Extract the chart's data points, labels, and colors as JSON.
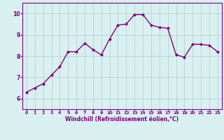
{
  "x": [
    0,
    1,
    2,
    3,
    4,
    5,
    6,
    7,
    8,
    9,
    10,
    11,
    12,
    13,
    14,
    15,
    16,
    17,
    18,
    19,
    20,
    21,
    22,
    23
  ],
  "y": [
    6.3,
    6.5,
    6.7,
    7.1,
    7.5,
    8.2,
    8.2,
    8.6,
    8.3,
    8.05,
    8.8,
    9.45,
    9.5,
    9.95,
    9.95,
    9.45,
    9.35,
    9.3,
    8.05,
    7.95,
    8.55,
    8.55,
    8.5,
    8.2
  ],
  "line_color": "#800080",
  "marker": "D",
  "marker_size": 2.0,
  "bg_color": "#d8f0f0",
  "grid_color": "#b0cccc",
  "xlabel": "Windchill (Refroidissement éolien,°C)",
  "xlabel_color": "#800080",
  "tick_color": "#800080",
  "spine_color": "#800080",
  "ylim": [
    5.5,
    10.5
  ],
  "xlim": [
    -0.5,
    23.5
  ],
  "yticks": [
    6,
    7,
    8,
    9,
    10
  ],
  "xticks": [
    0,
    1,
    2,
    3,
    4,
    5,
    6,
    7,
    8,
    9,
    10,
    11,
    12,
    13,
    14,
    15,
    16,
    17,
    18,
    19,
    20,
    21,
    22,
    23
  ],
  "xlabel_fontsize": 5.5,
  "xtick_fontsize": 4.5,
  "ytick_fontsize": 5.5,
  "linewidth": 1.0
}
